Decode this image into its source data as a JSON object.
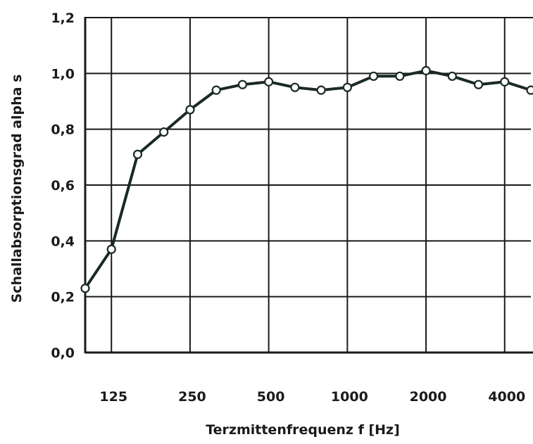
{
  "chart_data": {
    "type": "line",
    "title": "",
    "xlabel": "Terzmittenfrequenz f [Hz]",
    "ylabel": "Schallabsorptionsgrad alpha s",
    "x_tick_labels": [
      "125",
      "250",
      "500",
      "1000",
      "2000",
      "4000"
    ],
    "y_tick_labels": [
      "0,0",
      "0,2",
      "0,4",
      "0,6",
      "0,8",
      "1,0",
      "1,2"
    ],
    "ylim": [
      0,
      1.2
    ],
    "grid": true,
    "x": [
      100,
      125,
      160,
      200,
      250,
      315,
      400,
      500,
      630,
      800,
      1000,
      1250,
      1600,
      2000,
      2500,
      3150,
      4000,
      5000
    ],
    "series": [
      {
        "name": "",
        "values": [
          0.23,
          0.37,
          0.71,
          0.79,
          0.87,
          0.94,
          0.96,
          0.97,
          0.95,
          0.94,
          0.95,
          0.99,
          0.99,
          1.01,
          0.99,
          0.96,
          0.97,
          0.94
        ]
      }
    ]
  }
}
